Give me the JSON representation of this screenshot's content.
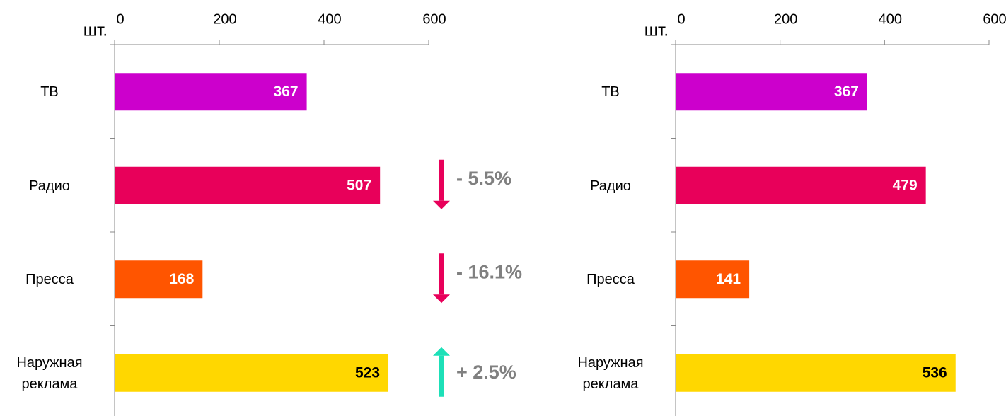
{
  "chart_data": [
    {
      "type": "bar",
      "unit_label": "шт.",
      "categories": [
        "ТВ",
        "Радио",
        "Пресса",
        "Наружная реклама"
      ],
      "values": [
        367,
        507,
        168,
        523
      ],
      "colors": [
        "#cc00cc",
        "#e8005a",
        "#ff5500",
        "#ffd700"
      ],
      "xlim": [
        0,
        600
      ],
      "xticks": [
        0,
        200,
        400,
        600
      ],
      "annotations": [
        {
          "text": "- 5.5%",
          "color": "#e8005a",
          "direction": "down"
        },
        {
          "text": "- 16.1%",
          "color": "#e8005a",
          "direction": "down"
        },
        {
          "text": "+ 2.5%",
          "color": "#1de0b8",
          "direction": "up"
        }
      ]
    },
    {
      "type": "bar",
      "unit_label": "шт.",
      "categories": [
        "ТВ",
        "Радио",
        "Пресса",
        "Наружная реклама"
      ],
      "values": [
        367,
        479,
        141,
        536
      ],
      "colors": [
        "#cc00cc",
        "#e8005a",
        "#ff5500",
        "#ffd700"
      ],
      "xlim": [
        0,
        600
      ],
      "xticks": [
        0,
        200,
        400,
        600
      ]
    }
  ]
}
